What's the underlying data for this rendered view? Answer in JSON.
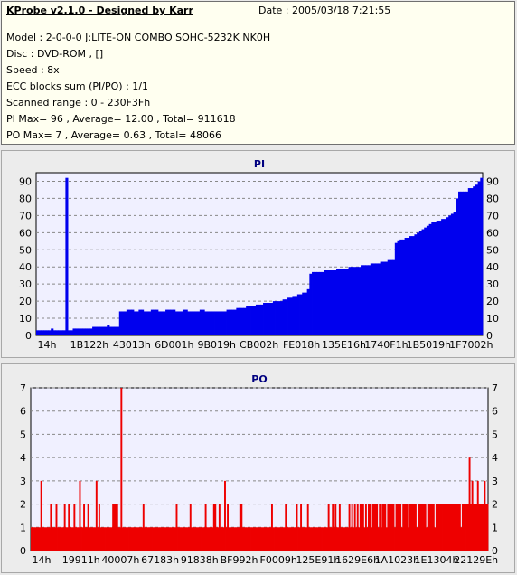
{
  "header": {
    "title": "KProbe v2.1.0 - Designed by Karr",
    "date": "Date : 2005/03/18 7:21:55",
    "model": "Model : 2-0-0-0 J:LITE-ON COMBO SOHC-5232K NK0H",
    "disc": "Disc : DVD-ROM ,  []",
    "speed": "Speed : 8x",
    "ecc": "ECC blocks sum (PI/PO) : 1/1",
    "scanned": "Scanned range : 0 - 230F3Fh",
    "pi_stats": "PI Max= 96 , Average= 12.00 , Total= 911618",
    "po_stats": "PO Max= 7 , Average= 0.63 , Total= 48066"
  },
  "colors": {
    "pi": "#0000ee",
    "po": "#ee0000",
    "plot_bg": "#f0f0ff",
    "grid": "#888888"
  },
  "chart_data": [
    {
      "type": "bar",
      "title": "PI",
      "xlabel": "",
      "ylabel": "",
      "ylim": [
        0,
        95
      ],
      "yticks": [
        0,
        10,
        20,
        30,
        40,
        50,
        60,
        70,
        80,
        90
      ],
      "xtick_labels": [
        "14h",
        "1B122h",
        "43013h",
        "6D001h",
        "9B019h",
        "CB002h",
        "FE018h",
        "135E16h",
        "1740F1h",
        "1B5019h",
        "1F7002h"
      ],
      "grid": true,
      "series": [
        {
          "values": [
            3,
            3,
            3,
            3,
            3,
            3,
            4,
            3,
            3,
            3,
            3,
            3,
            92,
            3,
            3,
            4,
            4,
            4,
            4,
            4,
            4,
            4,
            4,
            5,
            5,
            5,
            5,
            5,
            5,
            6,
            5,
            5,
            5,
            5,
            14,
            14,
            14,
            15,
            15,
            15,
            14,
            14,
            15,
            15,
            14,
            14,
            14,
            15,
            15,
            15,
            14,
            14,
            14,
            15,
            15,
            15,
            15,
            14,
            14,
            14,
            15,
            15,
            14,
            14,
            14,
            14,
            14,
            15,
            15,
            14,
            14,
            14,
            14,
            14,
            14,
            14,
            14,
            14,
            15,
            15,
            15,
            15,
            16,
            16,
            16,
            16,
            17,
            17,
            17,
            17,
            18,
            18,
            18,
            19,
            19,
            19,
            19,
            20,
            20,
            20,
            20,
            21,
            21,
            22,
            22,
            23,
            23,
            24,
            24,
            25,
            25,
            27,
            36,
            37,
            37,
            37,
            37,
            37,
            38,
            38,
            38,
            38,
            38,
            39,
            39,
            39,
            39,
            39,
            40,
            40,
            40,
            40,
            40,
            41,
            41,
            41,
            41,
            42,
            42,
            42,
            42,
            43,
            43,
            43,
            44,
            44,
            44,
            54,
            55,
            56,
            56,
            57,
            57,
            58,
            58,
            59,
            60,
            61,
            62,
            63,
            64,
            65,
            66,
            66,
            67,
            67,
            68,
            68,
            69,
            70,
            71,
            72,
            80,
            84,
            84,
            84,
            84,
            86,
            86,
            87,
            88,
            90,
            92
          ]
        }
      ]
    },
    {
      "type": "bar",
      "title": "PO",
      "xlabel": "",
      "ylabel": "",
      "ylim": [
        0,
        7
      ],
      "yticks": [
        0,
        1,
        2,
        3,
        4,
        5,
        6,
        7
      ],
      "xtick_labels": [
        "14h",
        "19911h",
        "40007h",
        "67183h",
        "91838h",
        "BF992h",
        "F0009h",
        "125E91h",
        "1629E6h",
        "1A1023h",
        "1E1304h",
        "22129Eh"
      ],
      "grid": true,
      "series": [
        {
          "values": [
            1,
            1,
            1,
            1,
            1,
            1,
            1,
            3,
            1,
            1,
            1,
            1,
            1,
            1,
            2,
            1,
            1,
            1,
            2,
            1,
            1,
            1,
            1,
            1,
            2,
            1,
            1,
            2,
            1,
            1,
            1,
            2,
            1,
            1,
            1,
            3,
            1,
            1,
            2,
            1,
            1,
            2,
            1,
            1,
            1,
            1,
            1,
            3,
            1,
            2,
            1,
            1,
            1,
            1,
            1,
            1,
            1,
            1,
            1,
            2,
            2,
            2,
            2,
            1,
            1,
            7,
            1,
            1,
            1,
            1,
            1,
            1,
            1,
            1,
            1,
            1,
            1,
            1,
            1,
            1,
            1,
            2,
            1,
            1,
            1,
            1,
            1,
            1,
            1,
            1,
            1,
            1,
            1,
            1,
            1,
            1,
            1,
            1,
            1,
            1,
            1,
            1,
            1,
            1,
            1,
            2,
            1,
            1,
            1,
            1,
            1,
            1,
            1,
            1,
            1,
            2,
            1,
            1,
            1,
            1,
            1,
            1,
            1,
            1,
            1,
            1,
            2,
            1,
            1,
            1,
            1,
            1,
            2,
            2,
            1,
            1,
            2,
            1,
            1,
            1,
            3,
            1,
            2,
            1,
            1,
            1,
            1,
            1,
            1,
            1,
            1,
            2,
            2,
            1,
            1,
            1,
            1,
            1,
            1,
            1,
            1,
            1,
            1,
            1,
            1,
            1,
            1,
            1,
            1,
            1,
            1,
            1,
            1,
            1,
            2,
            1,
            1,
            1,
            1,
            1,
            1,
            1,
            1,
            1,
            2,
            1,
            1,
            1,
            1,
            1,
            1,
            1,
            2,
            1,
            1,
            2,
            1,
            1,
            1,
            1,
            2,
            1,
            1,
            1,
            1,
            1,
            1,
            1,
            1,
            1,
            1,
            1,
            1,
            1,
            1,
            2,
            1,
            1,
            2,
            1,
            2,
            1,
            1,
            2,
            1,
            1,
            1,
            1,
            1,
            1,
            2,
            1,
            2,
            1,
            2,
            1,
            2,
            1,
            2,
            2,
            2,
            1,
            2,
            1,
            2,
            2,
            1,
            2,
            2,
            2,
            2,
            1,
            2,
            1,
            2,
            2,
            2,
            1,
            2,
            2,
            2,
            2,
            2,
            1,
            2,
            2,
            2,
            2,
            1,
            2,
            2,
            2,
            2,
            1,
            2,
            2,
            2,
            2,
            2,
            1,
            2,
            2,
            2,
            2,
            2,
            2,
            1,
            2,
            2,
            2,
            2,
            2,
            1,
            2,
            2,
            2,
            2,
            2,
            2,
            2,
            2,
            2,
            2,
            2,
            2,
            2,
            2,
            2,
            2,
            2,
            2,
            1,
            2,
            2,
            2,
            2,
            2,
            4,
            2,
            3,
            2,
            2,
            2,
            3,
            2,
            2,
            2,
            2,
            3,
            2,
            2
          ]
        }
      ]
    }
  ]
}
